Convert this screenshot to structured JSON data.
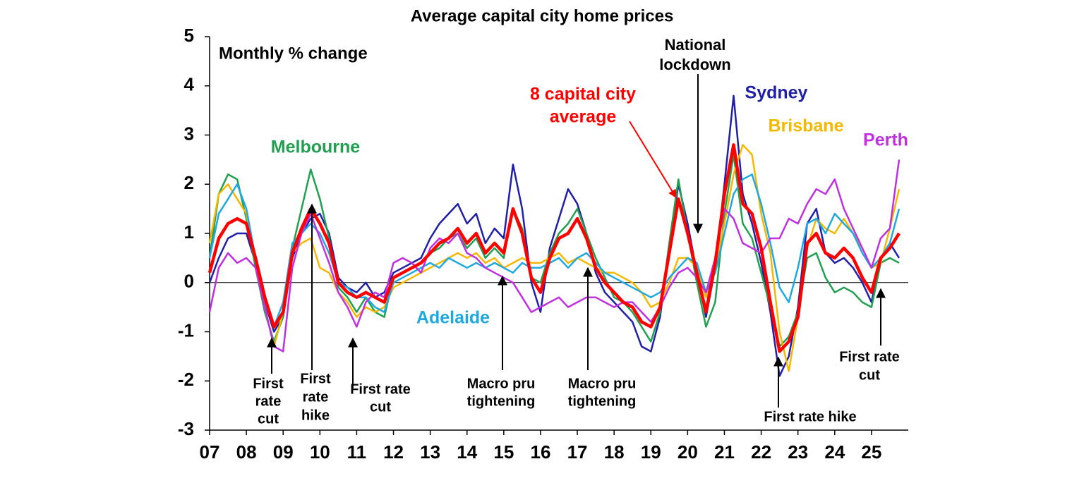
{
  "chart_data": {
    "type": "line",
    "title": "Average capital city home prices",
    "x": [
      2007,
      2007.25,
      2007.5,
      2007.75,
      2008,
      2008.25,
      2008.5,
      2008.75,
      2009,
      2009.25,
      2009.5,
      2009.75,
      2010,
      2010.25,
      2010.5,
      2010.75,
      2011,
      2011.25,
      2011.5,
      2011.75,
      2012,
      2012.25,
      2012.5,
      2012.75,
      2013,
      2013.25,
      2013.5,
      2013.75,
      2014,
      2014.25,
      2014.5,
      2014.75,
      2015,
      2015.25,
      2015.5,
      2015.75,
      2016,
      2016.25,
      2016.5,
      2016.75,
      2017,
      2017.25,
      2017.5,
      2017.75,
      2018,
      2018.25,
      2018.5,
      2018.75,
      2019,
      2019.25,
      2019.5,
      2019.75,
      2020,
      2020.25,
      2020.5,
      2020.75,
      2021,
      2021.25,
      2021.5,
      2021.75,
      2022,
      2022.25,
      2022.5,
      2022.75,
      2023,
      2023.25,
      2023.5,
      2023.75,
      2024,
      2024.25,
      2024.5,
      2024.75,
      2025,
      2025.25,
      2025.5,
      2025.75
    ],
    "series": [
      {
        "name": "Sydney",
        "color": "#1f1fa8",
        "values": [
          0.0,
          0.5,
          0.9,
          1.0,
          1.0,
          0.4,
          -0.4,
          -1.0,
          -0.7,
          0.5,
          1.0,
          1.3,
          1.4,
          1.0,
          0.1,
          -0.1,
          -0.2,
          0.0,
          -0.3,
          -0.2,
          0.2,
          0.3,
          0.4,
          0.5,
          0.9,
          1.2,
          1.4,
          1.6,
          1.2,
          1.4,
          0.8,
          1.1,
          0.9,
          2.4,
          1.5,
          0.0,
          -0.6,
          0.7,
          1.3,
          1.9,
          1.6,
          1.0,
          0.2,
          -0.2,
          -0.4,
          -0.6,
          -0.8,
          -1.3,
          -1.4,
          -0.7,
          0.7,
          2.0,
          1.2,
          0.2,
          -0.7,
          0.3,
          2.0,
          3.8,
          1.8,
          1.2,
          0.4,
          -0.6,
          -1.9,
          -1.5,
          -0.5,
          1.2,
          1.5,
          0.6,
          0.4,
          0.5,
          0.3,
          0.0,
          -0.4,
          0.5,
          0.8,
          0.5
        ]
      },
      {
        "name": "Melbourne",
        "color": "#20a050",
        "values": [
          0.5,
          1.8,
          2.2,
          2.1,
          1.3,
          0.3,
          -0.6,
          -1.2,
          -0.7,
          0.7,
          1.5,
          2.3,
          1.7,
          0.9,
          -0.1,
          -0.3,
          -0.6,
          -0.3,
          -0.6,
          -0.7,
          0.1,
          0.2,
          0.3,
          0.4,
          0.6,
          0.7,
          0.9,
          1.0,
          0.7,
          0.9,
          0.5,
          0.7,
          0.5,
          1.5,
          1.1,
          0.1,
          0.0,
          0.6,
          1.0,
          1.2,
          1.5,
          1.0,
          0.5,
          0.1,
          -0.3,
          -0.4,
          -0.6,
          -0.9,
          -1.2,
          -0.6,
          0.8,
          2.1,
          1.0,
          0.0,
          -0.9,
          -0.4,
          1.4,
          2.6,
          1.2,
          0.9,
          0.2,
          -0.5,
          -1.3,
          -1.1,
          -0.6,
          0.5,
          0.6,
          0.1,
          -0.2,
          -0.1,
          -0.2,
          -0.4,
          -0.5,
          0.4,
          0.5,
          0.4
        ]
      },
      {
        "name": "Brisbane",
        "color": "#f5b800",
        "values": [
          0.8,
          1.8,
          2.0,
          1.7,
          1.4,
          0.5,
          -0.5,
          -1.3,
          -0.6,
          0.6,
          0.8,
          0.9,
          0.3,
          0.2,
          -0.2,
          -0.4,
          -0.7,
          -0.5,
          -0.6,
          -0.5,
          -0.1,
          0.0,
          0.1,
          0.2,
          0.3,
          0.4,
          0.5,
          0.6,
          0.5,
          0.6,
          0.4,
          0.5,
          0.3,
          0.4,
          0.5,
          0.4,
          0.4,
          0.5,
          0.6,
          0.4,
          0.5,
          0.4,
          0.3,
          0.2,
          0.2,
          0.1,
          0.0,
          -0.2,
          -0.5,
          -0.4,
          0.0,
          0.5,
          0.5,
          0.3,
          -0.3,
          0.3,
          1.2,
          2.2,
          2.8,
          2.6,
          1.4,
          0.6,
          -1.0,
          -1.8,
          -0.7,
          0.7,
          1.3,
          1.1,
          1.0,
          1.3,
          1.0,
          0.7,
          0.3,
          0.4,
          1.1,
          1.9
        ]
      },
      {
        "name": "Adelaide",
        "color": "#20a8e0",
        "values": [
          0.5,
          1.4,
          1.7,
          2.0,
          1.5,
          0.5,
          -0.4,
          -0.9,
          -0.4,
          0.8,
          1.0,
          1.2,
          1.0,
          0.6,
          0.0,
          -0.1,
          -0.3,
          -0.3,
          -0.5,
          -0.6,
          0.0,
          0.1,
          0.2,
          0.3,
          0.4,
          0.3,
          0.5,
          0.4,
          0.3,
          0.4,
          0.3,
          0.4,
          0.3,
          0.2,
          0.4,
          0.3,
          0.3,
          0.4,
          0.5,
          0.3,
          0.5,
          0.6,
          0.4,
          0.2,
          0.1,
          0.0,
          -0.1,
          -0.2,
          -0.3,
          -0.2,
          0.1,
          0.3,
          0.5,
          0.4,
          -0.2,
          0.2,
          1.0,
          1.8,
          2.1,
          2.2,
          1.6,
          0.8,
          -0.1,
          -0.4,
          0.3,
          1.2,
          1.3,
          1.0,
          1.4,
          1.2,
          1.0,
          0.6,
          0.3,
          0.5,
          0.8,
          1.5
        ]
      },
      {
        "name": "Perth",
        "color": "#c030e0",
        "values": [
          -0.6,
          0.3,
          0.6,
          0.4,
          0.5,
          0.3,
          -0.5,
          -1.3,
          -1.4,
          0.3,
          1.0,
          1.4,
          0.9,
          0.4,
          -0.2,
          -0.5,
          -0.9,
          -0.4,
          -0.2,
          -0.3,
          0.4,
          0.5,
          0.4,
          0.2,
          0.7,
          0.9,
          0.8,
          1.0,
          0.6,
          0.5,
          0.3,
          0.2,
          0.1,
          0.0,
          -0.3,
          -0.6,
          -0.5,
          -0.4,
          -0.3,
          -0.5,
          -0.4,
          -0.3,
          -0.3,
          -0.4,
          -0.5,
          -0.4,
          -0.4,
          -0.6,
          -0.8,
          -0.5,
          -0.1,
          0.2,
          0.3,
          0.1,
          -0.2,
          0.5,
          1.5,
          1.3,
          0.8,
          0.7,
          0.6,
          0.9,
          0.9,
          1.3,
          1.2,
          1.6,
          1.9,
          1.8,
          2.1,
          1.5,
          1.1,
          0.7,
          0.3,
          0.9,
          1.1,
          2.5
        ]
      },
      {
        "name": "8 capital city average",
        "color": "#ff0000",
        "values": [
          0.2,
          0.9,
          1.2,
          1.3,
          1.2,
          0.5,
          -0.3,
          -0.9,
          -0.6,
          0.6,
          1.1,
          1.5,
          1.2,
          0.8,
          0.0,
          -0.2,
          -0.3,
          -0.2,
          -0.3,
          -0.4,
          0.1,
          0.2,
          0.3,
          0.4,
          0.6,
          0.8,
          0.9,
          1.1,
          0.8,
          1.0,
          0.6,
          0.8,
          0.6,
          1.5,
          1.0,
          0.1,
          -0.2,
          0.5,
          0.9,
          1.0,
          1.3,
          0.9,
          0.3,
          0.0,
          -0.2,
          -0.4,
          -0.5,
          -0.8,
          -0.9,
          -0.5,
          0.6,
          1.7,
          1.0,
          0.2,
          -0.6,
          0.4,
          1.8,
          2.8,
          1.6,
          1.4,
          0.7,
          -0.4,
          -1.4,
          -1.2,
          -0.7,
          0.8,
          1.0,
          0.6,
          0.5,
          0.7,
          0.5,
          0.1,
          -0.2,
          0.5,
          0.7,
          1.0
        ]
      }
    ],
    "xlim": [
      2007,
      2026
    ],
    "xticks": [
      {
        "value": 2007,
        "label": "07"
      },
      {
        "value": 2008,
        "label": "08"
      },
      {
        "value": 2009,
        "label": "09"
      },
      {
        "value": 2010,
        "label": "10"
      },
      {
        "value": 2011,
        "label": "11"
      },
      {
        "value": 2012,
        "label": "12"
      },
      {
        "value": 2013,
        "label": "13"
      },
      {
        "value": 2014,
        "label": "14"
      },
      {
        "value": 2015,
        "label": "15"
      },
      {
        "value": 2016,
        "label": "16"
      },
      {
        "value": 2017,
        "label": "17"
      },
      {
        "value": 2018,
        "label": "18"
      },
      {
        "value": 2019,
        "label": "19"
      },
      {
        "value": 2020,
        "label": "20"
      },
      {
        "value": 2021,
        "label": "21"
      },
      {
        "value": 2022,
        "label": "22"
      },
      {
        "value": 2023,
        "label": "23"
      },
      {
        "value": 2024,
        "label": "24"
      },
      {
        "value": 2025,
        "label": "25"
      }
    ],
    "ylim": [
      -3,
      5
    ],
    "yticks": [
      -3,
      -2,
      -1,
      0,
      1,
      2,
      3,
      4,
      5
    ],
    "annotations": [
      {
        "lines": [
          "Monthly % change"
        ]
      },
      {
        "lines": [
          "National",
          "lockdown"
        ]
      },
      {
        "lines": [
          "8 capital city",
          "average"
        ],
        "color": "#ff0000"
      },
      {
        "lines": [
          "First",
          "rate",
          "cut"
        ]
      },
      {
        "lines": [
          "First",
          "rate",
          "hike"
        ]
      },
      {
        "lines": [
          "First rate",
          "cut"
        ]
      },
      {
        "lines": [
          "Macro pru",
          "tightening"
        ]
      },
      {
        "lines": [
          "Macro pru",
          "tightening"
        ]
      },
      {
        "lines": [
          "First rate hike"
        ]
      },
      {
        "lines": [
          "First rate",
          "cut"
        ]
      }
    ]
  }
}
